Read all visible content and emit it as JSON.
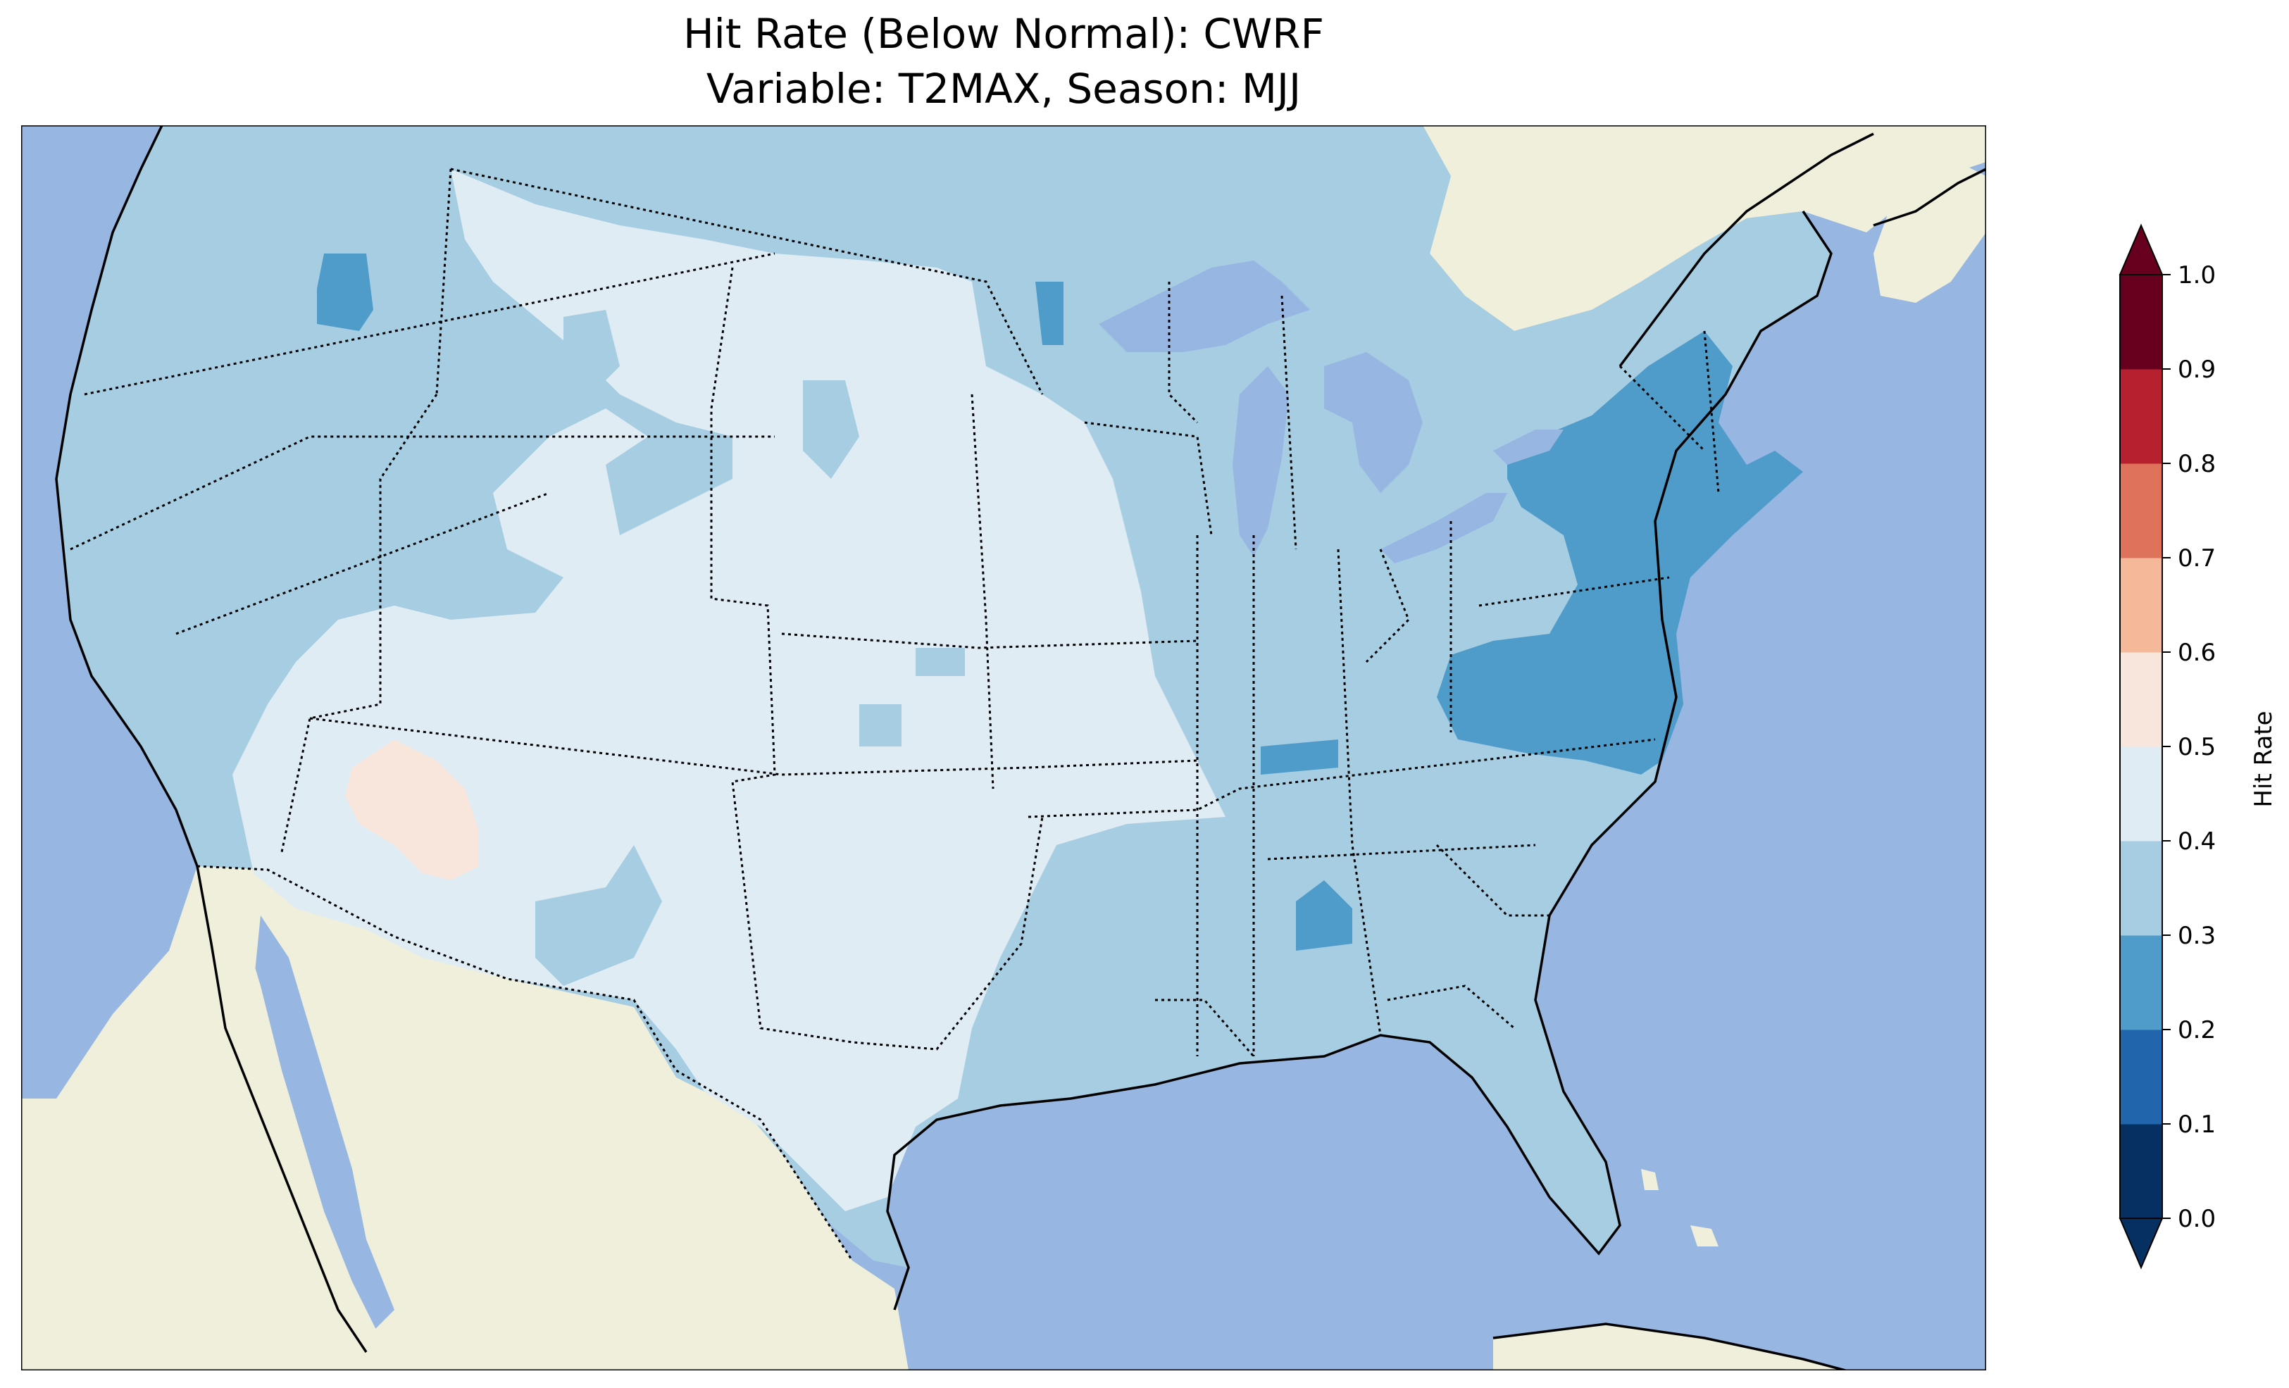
{
  "figure": {
    "title_line1": "Hit Rate (Below Normal): CWRF",
    "title_line2": "Variable: T2MAX, Season: MJJ"
  },
  "colors": {
    "ocean": "#97b6e1",
    "land": "#efefdb",
    "border": "#000000"
  },
  "chart_data": {
    "type": "heatmap",
    "colorbar": {
      "label": "Hit Rate",
      "ticks": [
        "0.0",
        "0.1",
        "0.2",
        "0.3",
        "0.4",
        "0.5",
        "0.6",
        "0.7",
        "0.8",
        "0.9",
        "1.0"
      ],
      "range": [
        0.0,
        1.0
      ],
      "extend": "both",
      "bins": [
        {
          "min": 0.0,
          "max": 0.1,
          "color": "#053061"
        },
        {
          "min": 0.1,
          "max": 0.2,
          "color": "#2166ac"
        },
        {
          "min": 0.2,
          "max": 0.3,
          "color": "#4f9bc9"
        },
        {
          "min": 0.3,
          "max": 0.4,
          "color": "#a6cde2"
        },
        {
          "min": 0.4,
          "max": 0.5,
          "color": "#e0ecf4"
        },
        {
          "min": 0.5,
          "max": 0.6,
          "color": "#f8e5dc"
        },
        {
          "min": 0.6,
          "max": 0.7,
          "color": "#f5b99a"
        },
        {
          "min": 0.7,
          "max": 0.8,
          "color": "#de725a"
        },
        {
          "min": 0.8,
          "max": 0.9,
          "color": "#b7212f"
        },
        {
          "min": 0.9,
          "max": 1.0,
          "color": "#67001f"
        }
      ],
      "under_color": "#053061",
      "over_color": "#67001f"
    }
  }
}
